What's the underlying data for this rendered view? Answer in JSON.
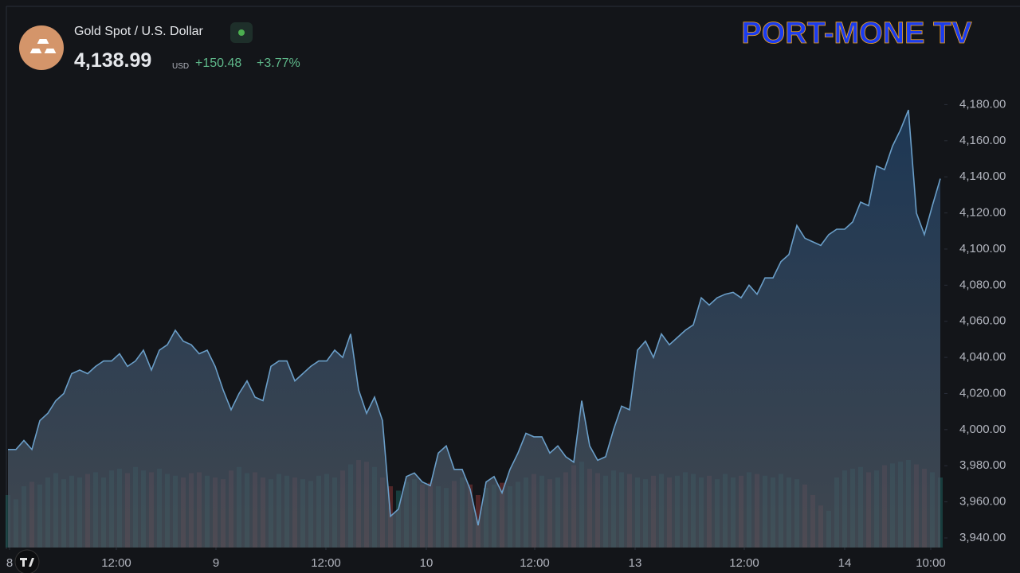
{
  "header": {
    "symbol": "Gold Spot / U.S. Dollar",
    "price": "4,138.99",
    "currency": "USD",
    "change": "+150.48",
    "change_pct": "+3.77%"
  },
  "logo": "PORT-MONE TV",
  "chart_data": {
    "type": "area",
    "color": "#6a9ec8",
    "up_color": "#26a69a",
    "down_color": "#ef5350",
    "grid": false,
    "values": [
      3989,
      3989,
      3994,
      3989,
      4005,
      4009,
      4016,
      4020,
      4031,
      4033,
      4031,
      4035,
      4038,
      4038,
      4042,
      4035,
      4038,
      4044,
      4033,
      4044,
      4047,
      4055,
      4049,
      4047,
      4042,
      4044,
      4035,
      4022,
      4011,
      4020,
      4027,
      4018,
      4016,
      4035,
      4038,
      4038,
      4027,
      4031,
      4035,
      4038,
      4038,
      4044,
      4040,
      4053,
      4022,
      4009,
      4018,
      4005,
      3952,
      3956,
      3974,
      3976,
      3971,
      3969,
      3987,
      3991,
      3978,
      3978,
      3967,
      3947,
      3971,
      3974,
      3965,
      3978,
      3987,
      3998,
      3996,
      3996,
      3987,
      3991,
      3985,
      3982,
      4016,
      3991,
      3983,
      3985,
      4000,
      4013,
      4011,
      4044,
      4049,
      4040,
      4053,
      4047,
      4051,
      4055,
      4058,
      4073,
      4069,
      4073,
      4075,
      4076,
      4073,
      4080,
      4075,
      4084,
      4084,
      4093,
      4097,
      4113,
      4106,
      4104,
      4102,
      4108,
      4111,
      4111,
      4115,
      4126,
      4124,
      4146,
      4144,
      4157,
      4166,
      4177,
      4120,
      4108,
      4124,
      4139
    ],
    "volume": [
      60,
      55,
      70,
      75,
      72,
      80,
      85,
      78,
      82,
      80,
      84,
      86,
      80,
      88,
      90,
      85,
      92,
      88,
      86,
      90,
      84,
      82,
      80,
      85,
      86,
      82,
      80,
      78,
      88,
      92,
      85,
      86,
      80,
      78,
      84,
      82,
      80,
      78,
      76,
      82,
      84,
      80,
      88,
      95,
      100,
      98,
      92,
      80,
      70,
      65,
      75,
      78,
      72,
      74,
      70,
      68,
      76,
      80,
      72,
      60,
      68,
      72,
      74,
      70,
      75,
      80,
      84,
      82,
      78,
      80,
      86,
      94,
      98,
      90,
      85,
      82,
      88,
      86,
      84,
      80,
      78,
      82,
      84,
      80,
      82,
      86,
      84,
      80,
      82,
      78,
      84,
      80,
      82,
      86,
      84,
      82,
      80,
      84,
      80,
      78,
      72,
      60,
      48,
      42,
      80,
      88,
      90,
      92,
      86,
      88,
      94,
      96,
      98,
      100,
      95,
      90,
      86,
      80
    ],
    "xlim": [
      0,
      117.5
    ],
    "xticks": [
      {
        "value": 0.2,
        "label": "8"
      },
      {
        "value": 13.6,
        "label": "12:00"
      },
      {
        "value": 26.1,
        "label": "9"
      },
      {
        "value": 39.9,
        "label": "12:00"
      },
      {
        "value": 52.5,
        "label": "10"
      },
      {
        "value": 66.1,
        "label": "12:00"
      },
      {
        "value": 78.7,
        "label": "13"
      },
      {
        "value": 92.4,
        "label": "12:00"
      },
      {
        "value": 105,
        "label": "14"
      },
      {
        "value": 115.8,
        "label": "10:00"
      }
    ],
    "ylim": [
      3934.7,
      4234.4
    ],
    "yticks": [
      {
        "value": 3940,
        "label": "3,940.00"
      },
      {
        "value": 3960,
        "label": "3,960.00"
      },
      {
        "value": 3980,
        "label": "3,980.00"
      },
      {
        "value": 4000,
        "label": "4,000.00"
      },
      {
        "value": 4020,
        "label": "4,020.00"
      },
      {
        "value": 4040,
        "label": "4,040.00"
      },
      {
        "value": 4060,
        "label": "4,060.00"
      },
      {
        "value": 4080,
        "label": "4,080.00"
      },
      {
        "value": 4100,
        "label": "4,100.00"
      },
      {
        "value": 4120,
        "label": "4,120.00"
      },
      {
        "value": 4140,
        "label": "4,140.00"
      },
      {
        "value": 4160,
        "label": "4,160.00"
      },
      {
        "value": 4180,
        "label": "4,180.00"
      }
    ]
  }
}
